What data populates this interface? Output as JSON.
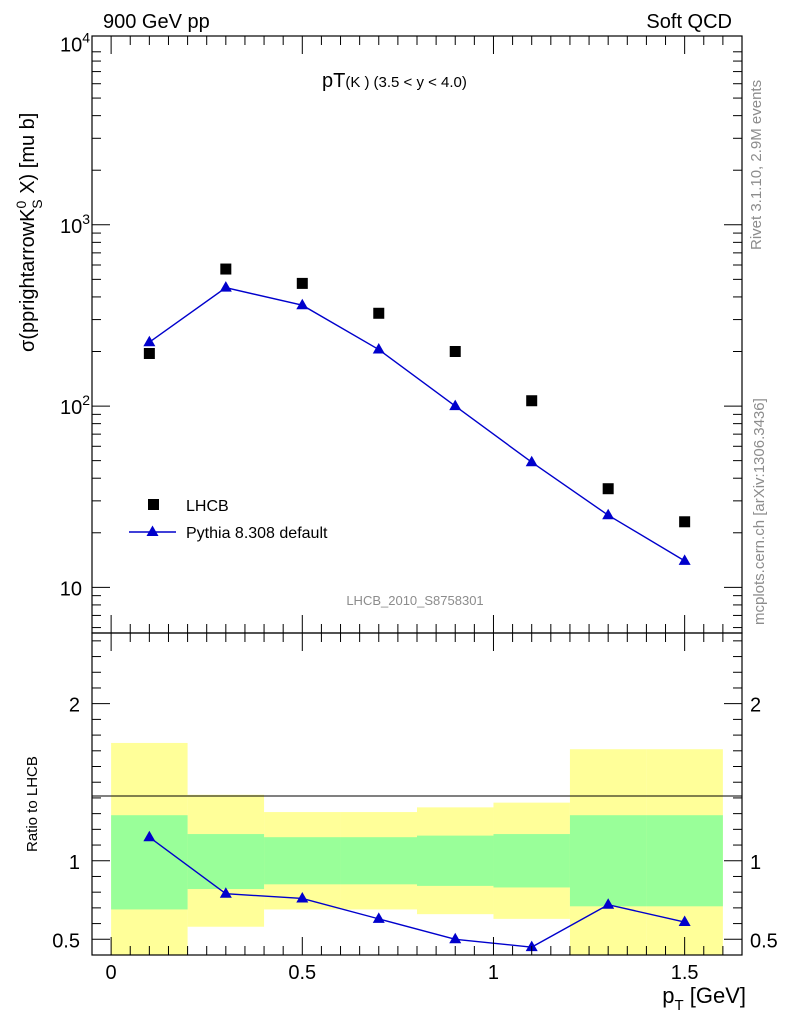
{
  "header": {
    "left": "900 GeV pp",
    "right": "Soft QCD"
  },
  "side_labels": {
    "rivet": "Rivet 3.1.10,  2.9M events",
    "source": "mcplots.cern.ch [arXiv:1306.3436]"
  },
  "colors": {
    "data": "#000000",
    "mc": "#0000cc",
    "band_inner": "#99ff99",
    "band_outer": "#ffff99"
  },
  "chart_data": [
    {
      "type": "scatter",
      "title": "pT(K⁻) (3.5 < y < 4.0)",
      "title_main": "pT",
      "title_sub": "(K )",
      "title_range": "(3.5 < y < 4.0)",
      "ylabel": "σ(pprightarrowK⁰s X) [mu b]",
      "ylabel_parts": {
        "a": "σ(pprightarrowK",
        "sup": "0",
        "sub": "S",
        "b": " X) [mu b]"
      },
      "yscale": "log",
      "xlim": [
        -0.05,
        1.65
      ],
      "ylim": [
        5.6,
        11000
      ],
      "ytick_labels": [
        "10",
        "10",
        "10",
        "10"
      ],
      "ytick_exps": [
        "",
        "2",
        "3",
        "4"
      ],
      "analysis_id": "LHCB_2010_S8758301",
      "legend": {
        "position": "bottom-left",
        "data_label": "LHCB",
        "mc_label": "Pythia 8.308 default"
      },
      "x": [
        0.1,
        0.3,
        0.5,
        0.7,
        0.9,
        1.1,
        1.3,
        1.5
      ],
      "series": [
        {
          "name": "LHCB",
          "values": [
            195,
            570,
            475,
            325,
            200,
            107,
            35,
            23
          ]
        },
        {
          "name": "Pythia 8.308 default",
          "values": [
            225,
            450,
            360,
            205,
            100,
            49,
            25,
            14
          ]
        }
      ]
    },
    {
      "type": "line",
      "ylabel": "Ratio to LHCB",
      "xlabel": "p",
      "xlabel_sub": "T",
      "xlabel_unit": " [GeV]",
      "xlim": [
        -0.05,
        1.65
      ],
      "ylim": [
        0.4,
        2.45
      ],
      "xticks": [
        0,
        0.5,
        1,
        1.5
      ],
      "xtick_labels": [
        "0",
        "0.5",
        "1",
        "1.5"
      ],
      "yticks": [
        0.5,
        1,
        2
      ],
      "ytick_labels": [
        "0.5",
        "1",
        "2"
      ],
      "bins": [
        0,
        0.2,
        0.4,
        0.6,
        0.8,
        1.0,
        1.2,
        1.4,
        1.6
      ],
      "band_inner": [
        [
          0.69,
          1.29
        ],
        [
          0.82,
          1.17
        ],
        [
          0.85,
          1.15
        ],
        [
          0.85,
          1.15
        ],
        [
          0.84,
          1.16
        ],
        [
          0.83,
          1.17
        ],
        [
          0.71,
          1.29
        ],
        [
          0.71,
          1.29
        ]
      ],
      "band_outer": [
        [
          0.4,
          1.75
        ],
        [
          0.58,
          1.42
        ],
        [
          0.69,
          1.31
        ],
        [
          0.69,
          1.31
        ],
        [
          0.66,
          1.34
        ],
        [
          0.63,
          1.37
        ],
        [
          0.4,
          1.71
        ],
        [
          0.4,
          1.71
        ]
      ],
      "x": [
        0.1,
        0.3,
        0.5,
        0.7,
        0.9,
        1.1,
        1.3,
        1.5
      ],
      "series": [
        {
          "name": "Pythia 8.308 default / LHCB",
          "values": [
            1.15,
            0.79,
            0.76,
            0.63,
            0.5,
            0.45,
            0.72,
            0.61
          ]
        }
      ]
    }
  ]
}
